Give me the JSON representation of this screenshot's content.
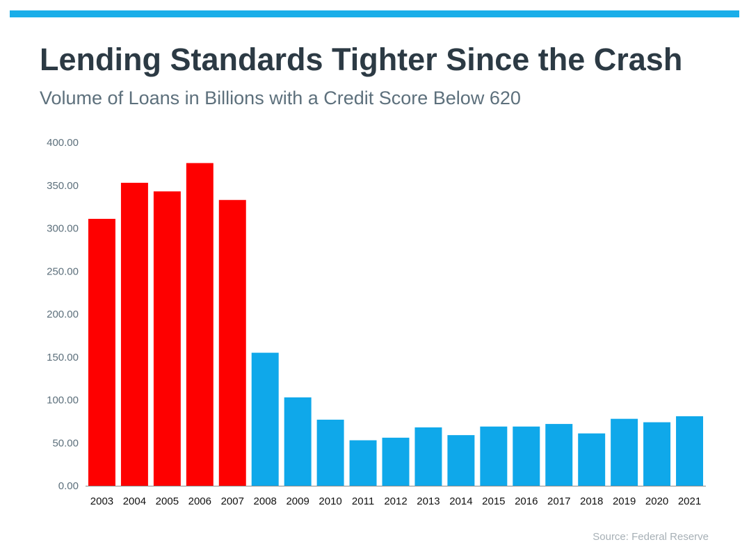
{
  "colors": {
    "accent": "#1aaee9",
    "pre_crash": "#fe0000",
    "post_crash": "#0fa8ea",
    "title": "#2c3a44",
    "subtitle": "#5d707c",
    "axis_text": "#5d707c",
    "source": "#a7b0b6"
  },
  "header": {
    "title": "Lending Standards Tighter Since the Crash",
    "subtitle": "Volume of Loans in Billions with a Credit Score Below 620"
  },
  "footer": {
    "source": "Source: Federal Reserve"
  },
  "chart_data": {
    "type": "bar",
    "title": "Lending Standards Tighter Since the Crash",
    "subtitle": "Volume of Loans in Billions with a Credit Score Below 620",
    "xlabel": "",
    "ylabel": "",
    "ylim": [
      0,
      400
    ],
    "yticks": [
      "0.00",
      "50.00",
      "100.00",
      "150.00",
      "200.00",
      "250.00",
      "300.00",
      "350.00",
      "400.00"
    ],
    "grid": false,
    "legend": "none",
    "categories": [
      "2003",
      "2004",
      "2005",
      "2006",
      "2007",
      "2008",
      "2009",
      "2010",
      "2011",
      "2012",
      "2013",
      "2014",
      "2015",
      "2016",
      "2017",
      "2018",
      "2019",
      "2020",
      "2021"
    ],
    "values": [
      311,
      353,
      343,
      376,
      333,
      155,
      103,
      77,
      53,
      56,
      68,
      59,
      69,
      69,
      72,
      61,
      78,
      74,
      81
    ],
    "bar_colors": [
      "#fe0000",
      "#fe0000",
      "#fe0000",
      "#fe0000",
      "#fe0000",
      "#0fa8ea",
      "#0fa8ea",
      "#0fa8ea",
      "#0fa8ea",
      "#0fa8ea",
      "#0fa8ea",
      "#0fa8ea",
      "#0fa8ea",
      "#0fa8ea",
      "#0fa8ea",
      "#0fa8ea",
      "#0fa8ea",
      "#0fa8ea",
      "#0fa8ea"
    ]
  }
}
